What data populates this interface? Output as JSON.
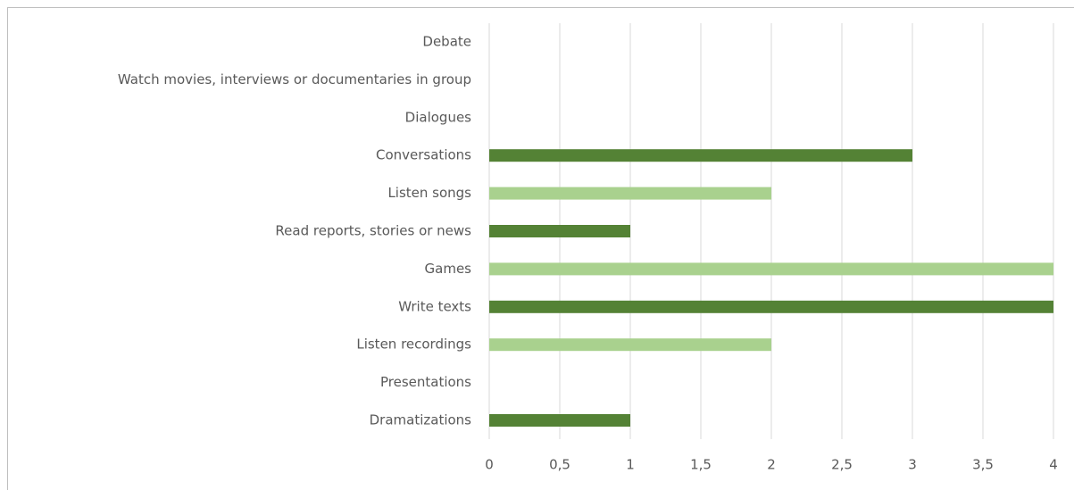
{
  "chart_data": {
    "type": "bar",
    "orientation": "horizontal",
    "categories": [
      "Debate",
      "Watch movies, interviews or documentaries in group",
      "Dialogues",
      "Conversations",
      "Listen songs",
      "Read reports, stories or news",
      "Games",
      "Write texts",
      "Listen recordings",
      "Presentations",
      "Dramatizations"
    ],
    "values": [
      0,
      0,
      0,
      3,
      2,
      1,
      4,
      4,
      2,
      0,
      1
    ],
    "colors": [
      "#548235",
      "#a9d18e",
      "#548235",
      "#548235",
      "#a9d18e",
      "#548235",
      "#a9d18e",
      "#548235",
      "#a9d18e",
      "#a9d18e",
      "#548235"
    ],
    "xlim": [
      0,
      4
    ],
    "xticks": [
      0,
      {
        "value": 0.5,
        "label": "0,5"
      },
      1,
      {
        "value": 1.5,
        "label": "1,5"
      },
      2,
      {
        "value": 2.5,
        "label": "2,5"
      },
      3,
      {
        "value": 3.5,
        "label": "3,5"
      },
      4
    ],
    "grid": true
  }
}
